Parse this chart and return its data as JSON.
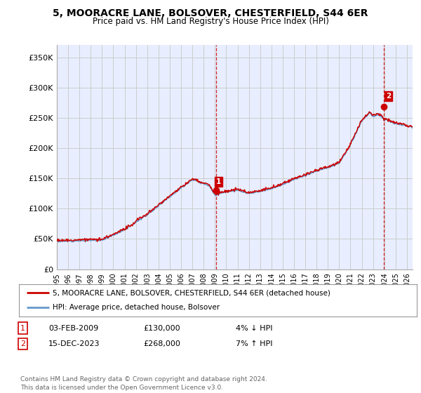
{
  "title": "5, MOORACRE LANE, BOLSOVER, CHESTERFIELD, S44 6ER",
  "subtitle": "Price paid vs. HM Land Registry's House Price Index (HPI)",
  "ylabel_ticks": [
    "£0",
    "£50K",
    "£100K",
    "£150K",
    "£200K",
    "£250K",
    "£300K",
    "£350K"
  ],
  "ytick_values": [
    0,
    50000,
    100000,
    150000,
    200000,
    250000,
    300000,
    350000
  ],
  "ylim": [
    0,
    370000
  ],
  "xlim_start": 1995.0,
  "xlim_end": 2026.5,
  "marker1_x": 2009.08,
  "marker1_y": 130000,
  "marker2_x": 2023.95,
  "marker2_y": 268000,
  "legend_line1": "5, MOORACRE LANE, BOLSOVER, CHESTERFIELD, S44 6ER (detached house)",
  "legend_line2": "HPI: Average price, detached house, Bolsover",
  "annot1_label": "1",
  "annot1_date": "03-FEB-2009",
  "annot1_price": "£130,000",
  "annot1_hpi": "4% ↓ HPI",
  "annot2_label": "2",
  "annot2_date": "15-DEC-2023",
  "annot2_price": "£268,000",
  "annot2_hpi": "7% ↑ HPI",
  "footer": "Contains HM Land Registry data © Crown copyright and database right 2024.\nThis data is licensed under the Open Government Licence v3.0.",
  "line_color_red": "#cc0000",
  "line_color_blue": "#6699cc",
  "marker_color_red": "#cc0000",
  "grid_color": "#cccccc",
  "bg_color": "#ffffff",
  "plot_bg_color": "#e8eeff",
  "vline_color": "#cc0000",
  "box_color": "#cc0000"
}
